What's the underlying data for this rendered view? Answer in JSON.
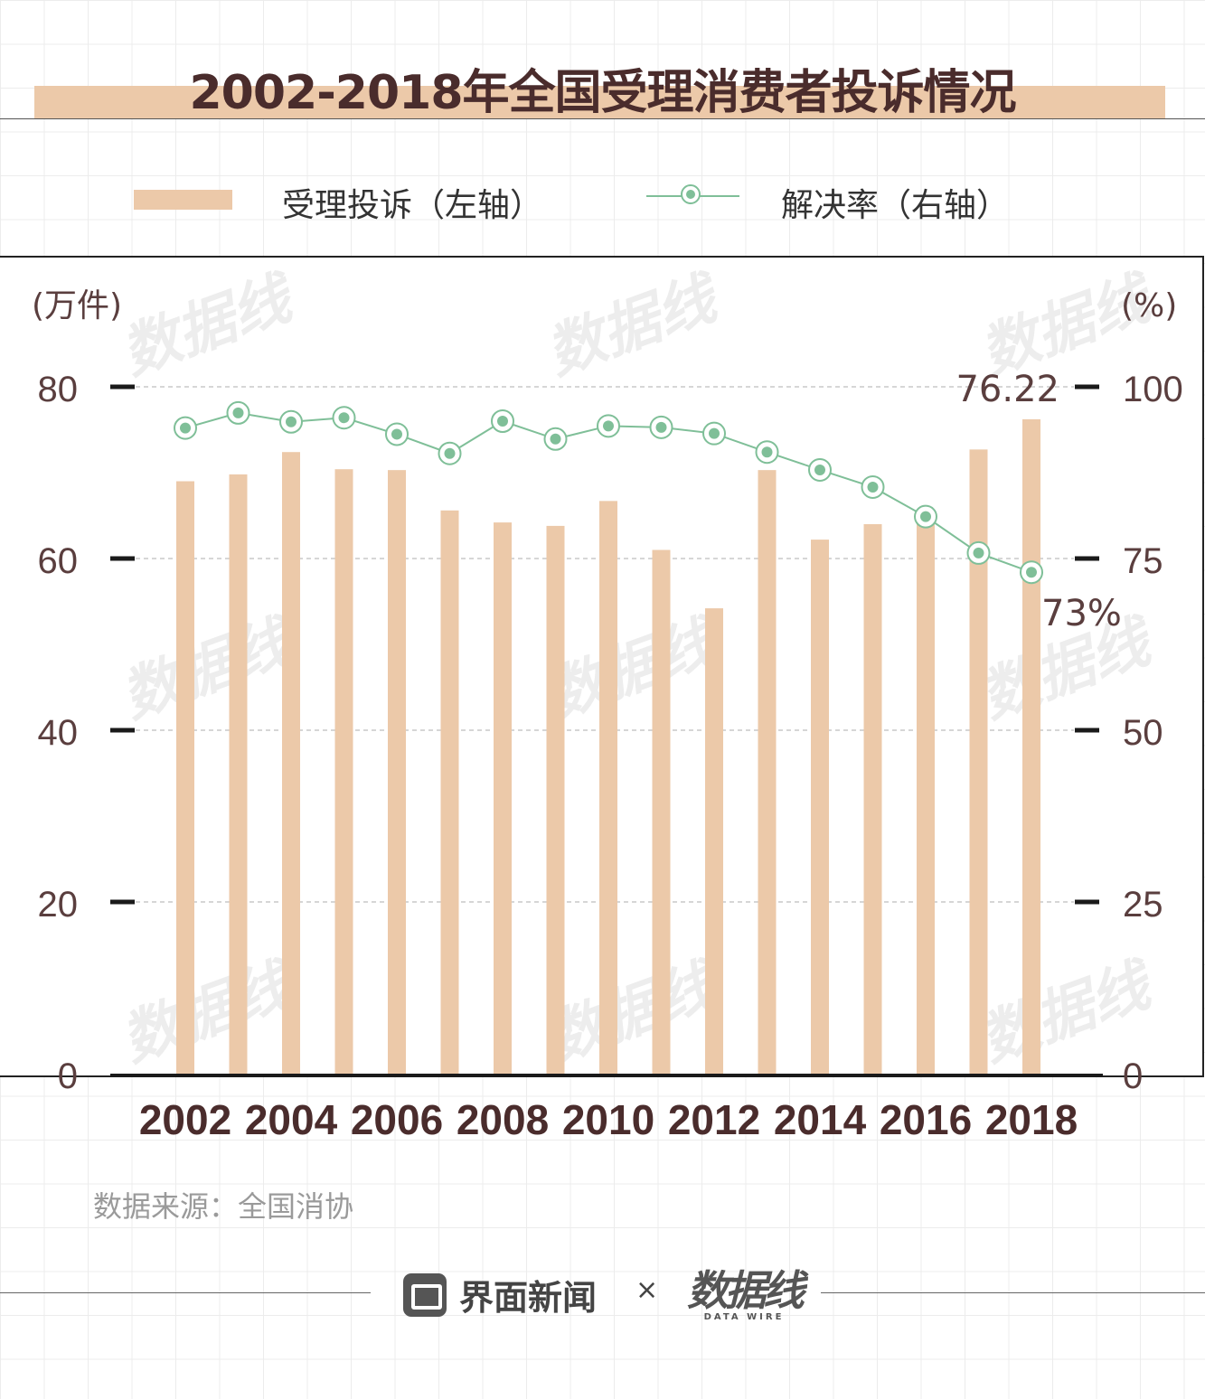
{
  "title": "2002-2018年全国受理消费者投诉情况",
  "legend": {
    "bar_label": "受理投诉（左轴）",
    "line_label": "解决率（右轴）"
  },
  "source": "数据来源：全国消协",
  "footer": {
    "brand1": "界面新闻",
    "separator": "×",
    "brand2": "数据线",
    "brand2_sub": "DATA WIRE"
  },
  "watermark": "数据线",
  "colors": {
    "bar": "#ecc9a9",
    "line": "#7fbf98",
    "axis_text": "#5a3e3e"
  },
  "chart_data": {
    "type": "bar",
    "title": "2002-2018年全国受理消费者投诉情况",
    "x": [
      2002,
      2003,
      2004,
      2005,
      2006,
      2007,
      2008,
      2009,
      2010,
      2011,
      2012,
      2013,
      2014,
      2015,
      2016,
      2017,
      2018
    ],
    "x_tick_labels": [
      "2002",
      "2004",
      "2006",
      "2008",
      "2010",
      "2012",
      "2014",
      "2016",
      "2018"
    ],
    "left_axis": {
      "unit_label": "(万件)",
      "ticks": [
        "0",
        "20",
        "40",
        "60",
        "80"
      ],
      "ylim": [
        0,
        80
      ]
    },
    "right_axis": {
      "unit_label": "(%)",
      "ticks": [
        "0",
        "25",
        "50",
        "75",
        "100"
      ],
      "ylim": [
        0,
        100
      ]
    },
    "series": [
      {
        "name": "受理投诉（左轴）",
        "type": "bar",
        "axis": "left",
        "values": [
          69.0,
          69.8,
          72.4,
          70.4,
          70.3,
          65.6,
          64.2,
          63.8,
          66.7,
          61.0,
          54.2,
          70.3,
          62.2,
          64.0,
          65.3,
          72.7,
          76.22
        ]
      },
      {
        "name": "解决率（右轴）",
        "type": "line",
        "axis": "right",
        "values": [
          94.0,
          96.2,
          94.9,
          95.5,
          93.1,
          90.3,
          95.0,
          92.4,
          94.3,
          94.1,
          93.2,
          90.5,
          87.9,
          85.4,
          81.1,
          75.8,
          73.0
        ]
      }
    ],
    "annotations": [
      "76.22",
      "73%"
    ],
    "grid": true
  }
}
